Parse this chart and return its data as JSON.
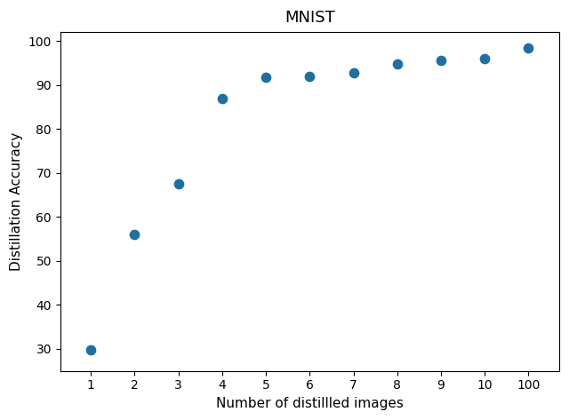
{
  "title": "MNIST",
  "xlabel": "Number of distillled images",
  "ylabel": "Distillation Accuracy",
  "x_values": [
    1,
    2,
    3,
    4,
    5,
    6,
    7,
    8,
    9,
    10,
    11
  ],
  "y_values": [
    29.8,
    56.0,
    67.5,
    87.0,
    91.7,
    92.0,
    92.7,
    94.8,
    95.5,
    96.0,
    98.5
  ],
  "x_tick_labels": [
    "1",
    "2",
    "3",
    "4",
    "5",
    "6",
    "7",
    "8",
    "9",
    "10",
    "100"
  ],
  "ylim": [
    25,
    102
  ],
  "xlim": [
    0.3,
    11.7
  ],
  "yticks": [
    30,
    40,
    50,
    60,
    70,
    80,
    90,
    100
  ],
  "marker_color": "#1f6f9f",
  "marker_size": 55,
  "background_color": "#ffffff",
  "title_fontsize": 13,
  "label_fontsize": 11,
  "tick_fontsize": 10
}
